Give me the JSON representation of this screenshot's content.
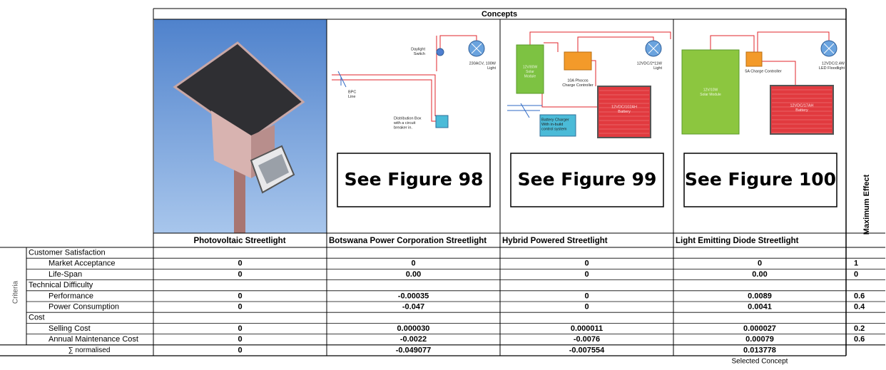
{
  "header": {
    "concepts": "Concepts",
    "maximum_effect": "Maximum Effect",
    "criteria": "Criteria"
  },
  "concepts": [
    {
      "name": "Photovoltaic Streetlight"
    },
    {
      "name": "Botswana Power Corporation Streetlight",
      "figure": "See Figure 98",
      "diagram_labels": [
        [
          "Daylight",
          "Switch"
        ],
        [
          "230ACV, 100W",
          "Light"
        ],
        [
          "BPC",
          "Line"
        ],
        [
          "Distribution Box",
          "with a circuit",
          "breaker in."
        ]
      ]
    },
    {
      "name": "Hybrid Powered Streetlight",
      "figure": "See Figure 99",
      "diagram_labels": [
        [
          "12V/80W",
          "Solar",
          "Module"
        ],
        [
          "10A Phocos",
          "Charge Controller"
        ],
        [
          "12VDC/2*11W",
          "Light"
        ],
        [
          "12VDC/102AH",
          "Battery"
        ],
        [
          "Battery Charger",
          "With in-build",
          "control system"
        ]
      ]
    },
    {
      "name": "Light Emitting Diode Streetlight",
      "figure": "See Figure 100",
      "diagram_labels": [
        [
          "12V/10W",
          "Solar Module"
        ],
        [
          "5A Charge Controller"
        ],
        [
          "12VDC/2.4W",
          "LED Floodlight"
        ],
        [
          "12VDC/17AH",
          "Battery"
        ]
      ]
    }
  ],
  "groups": [
    {
      "label": "Customer Satisfaction",
      "rows": [
        {
          "label": "Market Acceptance",
          "values": [
            "0",
            "0",
            "0",
            "0"
          ],
          "max": "1"
        },
        {
          "label": "Life-Span",
          "values": [
            "0",
            "0.00",
            "0",
            "0.00"
          ],
          "max": "0"
        }
      ]
    },
    {
      "label": "Technical Difficulty",
      "rows": [
        {
          "label": "Performance",
          "values": [
            "0",
            "-0.00035",
            "0",
            "0.0089"
          ],
          "max": "0.6"
        },
        {
          "label": "Power Consumption",
          "values": [
            "0",
            "-0.047",
            "0",
            "0.0041"
          ],
          "max": "0.4"
        }
      ]
    },
    {
      "label": "Cost",
      "rows": [
        {
          "label": "Selling Cost",
          "values": [
            "0",
            "0.000030",
            "0.000011",
            "0.000027"
          ],
          "max": "0.2"
        },
        {
          "label": "Annual Maintenance Cost",
          "values": [
            "0",
            "-0.0022",
            "-0.0076",
            "0.00079"
          ],
          "max": "0.6"
        }
      ]
    }
  ],
  "total": {
    "label": "∑ normalised",
    "values": [
      "0",
      "-0.049077",
      "-0.007554",
      "0.013778"
    ]
  },
  "footer": "Selected Concept"
}
